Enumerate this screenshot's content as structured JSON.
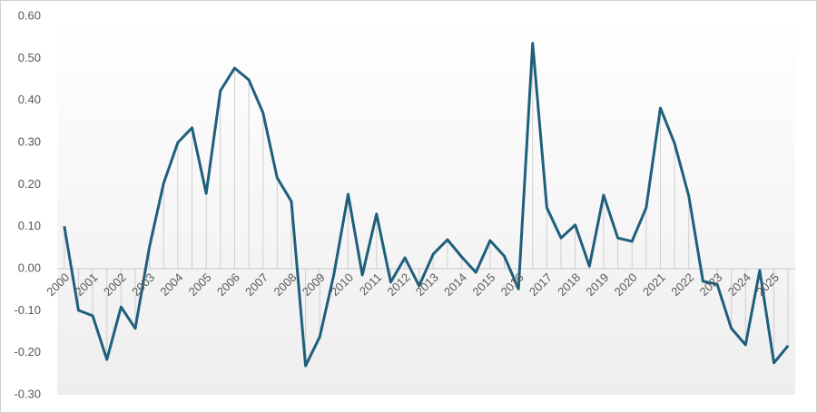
{
  "chart_data": {
    "type": "line",
    "categories": [
      "2000",
      null,
      "2001",
      null,
      "2002",
      null,
      "2003",
      null,
      "2004",
      null,
      "2005",
      null,
      "2006",
      null,
      "2007",
      null,
      "2008",
      null,
      "2009",
      null,
      "2010",
      null,
      "2011",
      null,
      "2012",
      null,
      "2013",
      null,
      "2014",
      null,
      "2015",
      null,
      "2016",
      null,
      "2017",
      null,
      "2018",
      null,
      "2019",
      null,
      "2020",
      null,
      "2021",
      null,
      "2022",
      null,
      "2023",
      null,
      "2024",
      null,
      "2025",
      null
    ],
    "values": [
      0.101,
      -0.099,
      -0.112,
      -0.216,
      -0.091,
      -0.142,
      0.052,
      0.203,
      0.3,
      0.335,
      0.179,
      0.423,
      0.477,
      0.449,
      0.371,
      0.216,
      0.16,
      -0.231,
      -0.162,
      -0.013,
      0.177,
      -0.015,
      0.13,
      -0.032,
      0.026,
      -0.041,
      0.035,
      0.069,
      0.028,
      -0.009,
      0.067,
      0.03,
      -0.048,
      0.536,
      0.145,
      0.073,
      0.104,
      0.006,
      0.175,
      0.073,
      0.065,
      0.145,
      0.382,
      0.298,
      0.173,
      -0.03,
      -0.037,
      -0.142,
      -0.181,
      -0.004,
      -0.224,
      -0.183
    ],
    "color": "#1e5f7b",
    "ylim": [
      -0.3,
      0.6
    ],
    "yticks": [
      {
        "value": -0.3,
        "label": "-0.30"
      },
      {
        "value": -0.2,
        "label": "-0.20"
      },
      {
        "value": -0.1,
        "label": "-0.10"
      },
      {
        "value": 0,
        "label": "0.00"
      },
      {
        "value": 0.1,
        "label": "0.10"
      },
      {
        "value": 0.2,
        "label": "0.20"
      },
      {
        "value": 0.3,
        "label": "0.30"
      },
      {
        "value": 0.4,
        "label": "0.40"
      },
      {
        "value": 0.5,
        "label": "0.50"
      },
      {
        "value": 0.6,
        "label": "0.60"
      }
    ],
    "drop_lines": true
  }
}
